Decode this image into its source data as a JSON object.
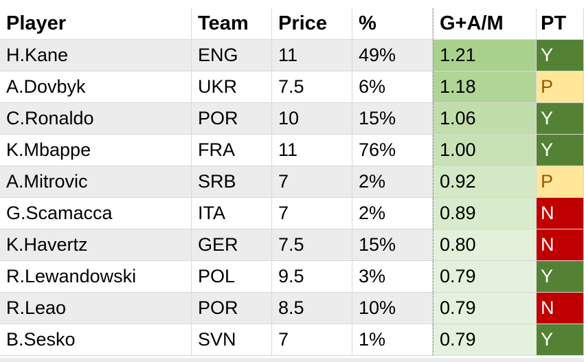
{
  "headers": {
    "player": "Player",
    "team": "Team",
    "price": "Price",
    "pct": "%",
    "gam": "G+A/M",
    "pt": "PT"
  },
  "rows": [
    {
      "player": "H.Kane",
      "team": "ENG",
      "price": "11",
      "pct": "49%",
      "gam": "1.21",
      "pt": "Y",
      "gam_color": "#a9d18e",
      "pt_color": "#548235"
    },
    {
      "player": "A.Dovbyk",
      "team": "UKR",
      "price": "7.5",
      "pct": "6%",
      "gam": "1.18",
      "pt": "P",
      "gam_color": "#b0d597",
      "pt_color": "#ffe699"
    },
    {
      "player": "C.Ronaldo",
      "team": "POR",
      "price": "10",
      "pct": "15%",
      "gam": "1.06",
      "pt": "Y",
      "gam_color": "#c0ddaa",
      "pt_color": "#548235"
    },
    {
      "player": "K.Mbappe",
      "team": "FRA",
      "price": "11",
      "pct": "76%",
      "gam": "1.00",
      "pt": "Y",
      "gam_color": "#c8e2b6",
      "pt_color": "#548235"
    },
    {
      "player": "A.Mitrovic",
      "team": "SRB",
      "price": "7",
      "pct": "2%",
      "gam": "0.92",
      "pt": "P",
      "gam_color": "#d3e8c5",
      "pt_color": "#ffe699"
    },
    {
      "player": "G.Scamacca",
      "team": "ITA",
      "price": "7",
      "pct": "2%",
      "gam": "0.89",
      "pt": "N",
      "gam_color": "#d8ebcc",
      "pt_color": "#c00000"
    },
    {
      "player": "K.Havertz",
      "team": "GER",
      "price": "7.5",
      "pct": "15%",
      "gam": "0.80",
      "pt": "N",
      "gam_color": "#e3f0da",
      "pt_color": "#c00000"
    },
    {
      "player": "R.Lewandowski",
      "team": "POL",
      "price": "9.5",
      "pct": "3%",
      "gam": "0.79",
      "pt": "Y",
      "gam_color": "#e4f1dc",
      "pt_color": "#548235"
    },
    {
      "player": "R.Leao",
      "team": "POR",
      "price": "8.5",
      "pct": "10%",
      "gam": "0.79",
      "pt": "N",
      "gam_color": "#e4f1dc",
      "pt_color": "#c00000"
    },
    {
      "player": "B.Sesko",
      "team": "SVN",
      "price": "7",
      "pct": "1%",
      "gam": "0.79",
      "pt": "Y",
      "gam_color": "#e4f1dc",
      "pt_color": "#548235"
    }
  ]
}
